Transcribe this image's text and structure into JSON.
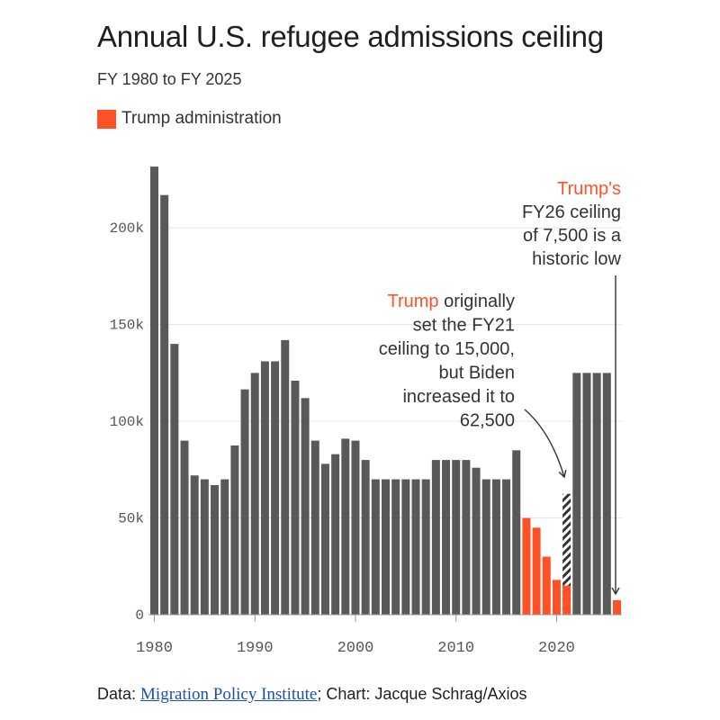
{
  "title": "Annual U.S. refugee admissions ceiling",
  "subtitle": "FY 1980 to FY 2025",
  "legend": {
    "label": "Trump administration",
    "color": "#ff5126"
  },
  "colors": {
    "bar": "#595959",
    "trump": "#ff5126",
    "hatch": "#333333",
    "axis": "#999999"
  },
  "footer": {
    "prefix": "Data: ",
    "source_link": "Migration Policy Institute",
    "suffix": "; Chart: Jacque Schrag/Axios"
  },
  "annotations": {
    "a1": {
      "lines": [
        "Trump's",
        "FY26 ceiling",
        "of 7,500 is a",
        "historic low"
      ],
      "highlight": "Trump's"
    },
    "a2": {
      "lines": [
        "Trump originally",
        "set the FY21",
        "ceiling to 15,000,",
        "but Biden",
        "increased it to",
        "62,500"
      ],
      "highlight": "Trump"
    }
  },
  "chart_data": {
    "type": "bar",
    "title": "Annual U.S. refugee admissions ceiling",
    "xlabel": "",
    "ylabel": "",
    "x_ticks": [
      "1980",
      "1990",
      "2000",
      "2010",
      "2020"
    ],
    "y_ticks": [
      "0",
      "50k",
      "100k",
      "150k",
      "200k"
    ],
    "ylim": [
      0,
      235000
    ],
    "xlim": [
      1980,
      2026
    ],
    "bars": [
      {
        "year": 1980,
        "value": 231700
      },
      {
        "year": 1981,
        "value": 217000
      },
      {
        "year": 1982,
        "value": 140000
      },
      {
        "year": 1983,
        "value": 90000
      },
      {
        "year": 1984,
        "value": 72000
      },
      {
        "year": 1985,
        "value": 70000
      },
      {
        "year": 1986,
        "value": 67000
      },
      {
        "year": 1987,
        "value": 70000
      },
      {
        "year": 1988,
        "value": 87500
      },
      {
        "year": 1989,
        "value": 116500
      },
      {
        "year": 1990,
        "value": 125000
      },
      {
        "year": 1991,
        "value": 131000
      },
      {
        "year": 1992,
        "value": 131000
      },
      {
        "year": 1993,
        "value": 142000
      },
      {
        "year": 1994,
        "value": 121000
      },
      {
        "year": 1995,
        "value": 112000
      },
      {
        "year": 1996,
        "value": 90000
      },
      {
        "year": 1997,
        "value": 78000
      },
      {
        "year": 1998,
        "value": 83000
      },
      {
        "year": 1999,
        "value": 91000
      },
      {
        "year": 2000,
        "value": 90000
      },
      {
        "year": 2001,
        "value": 80000
      },
      {
        "year": 2002,
        "value": 70000
      },
      {
        "year": 2003,
        "value": 70000
      },
      {
        "year": 2004,
        "value": 70000
      },
      {
        "year": 2005,
        "value": 70000
      },
      {
        "year": 2006,
        "value": 70000
      },
      {
        "year": 2007,
        "value": 70000
      },
      {
        "year": 2008,
        "value": 80000
      },
      {
        "year": 2009,
        "value": 80000
      },
      {
        "year": 2010,
        "value": 80000
      },
      {
        "year": 2011,
        "value": 80000
      },
      {
        "year": 2012,
        "value": 76000
      },
      {
        "year": 2013,
        "value": 70000
      },
      {
        "year": 2014,
        "value": 70000
      },
      {
        "year": 2015,
        "value": 70000
      },
      {
        "year": 2016,
        "value": 85000
      },
      {
        "year": 2017,
        "value": 50000,
        "trump": true
      },
      {
        "year": 2018,
        "value": 45000,
        "trump": true
      },
      {
        "year": 2019,
        "value": 30000,
        "trump": true
      },
      {
        "year": 2020,
        "value": 18000,
        "trump": true
      },
      {
        "year": 2021,
        "value": 15000,
        "trump": true,
        "revised_value": 62500
      },
      {
        "year": 2022,
        "value": 125000
      },
      {
        "year": 2023,
        "value": 125000
      },
      {
        "year": 2024,
        "value": 125000
      },
      {
        "year": 2025,
        "value": 125000
      },
      {
        "year": 2026,
        "value": 7500,
        "trump": true
      }
    ]
  }
}
